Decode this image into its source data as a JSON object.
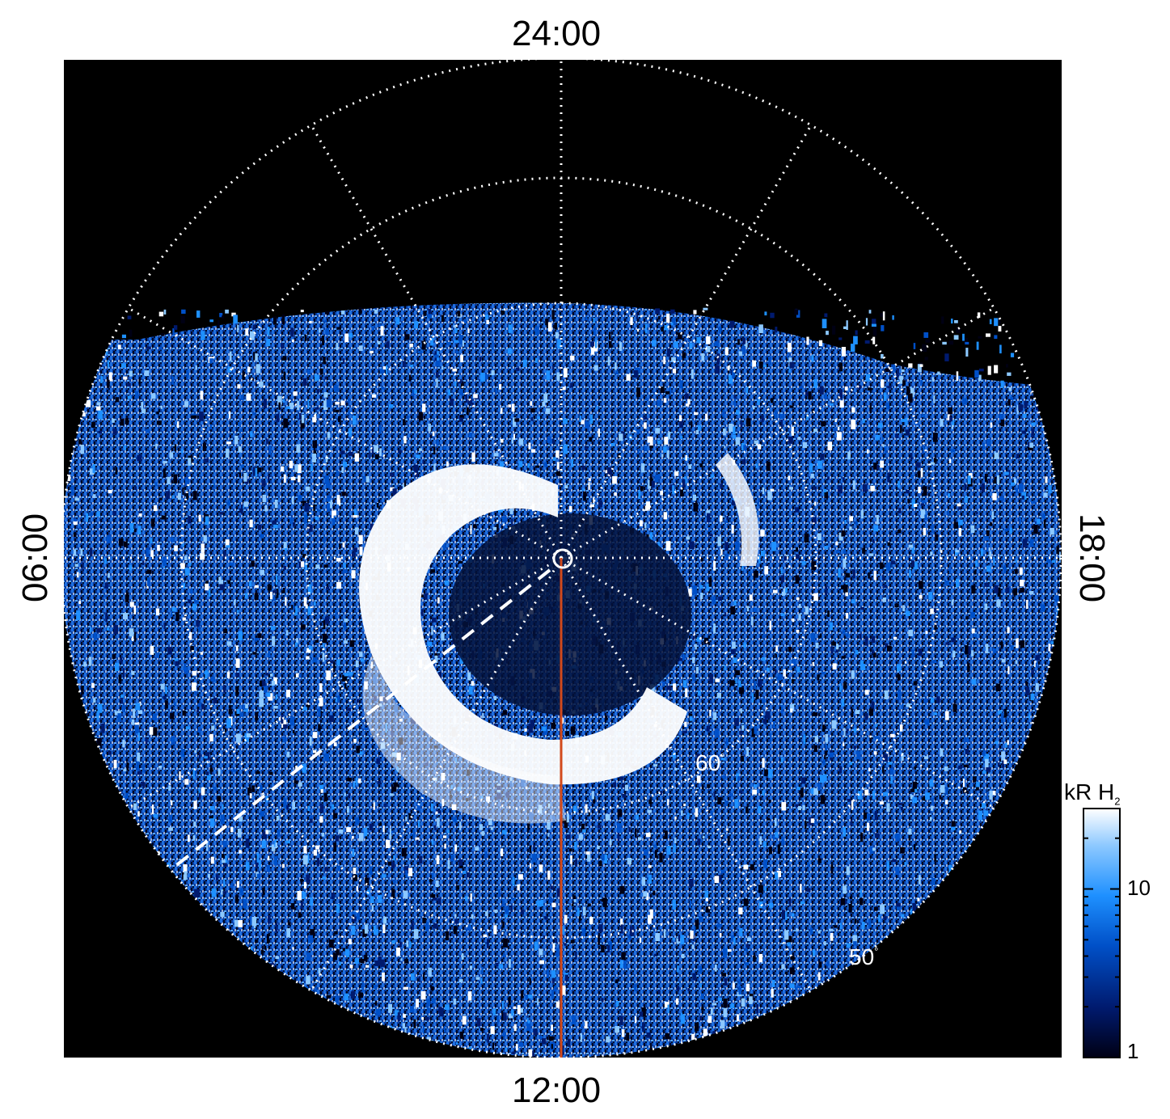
{
  "image": {
    "type": "polar auroral projection",
    "background": "#000000",
    "grid_color": "#ffffff",
    "meridian_color": "#d24a1c"
  },
  "local_time_labels": {
    "top": "24:00",
    "bottom": "12:00",
    "left": "06:00",
    "right": "18:00"
  },
  "latitude_labels": {
    "inner": "60",
    "outer": "50",
    "degree_symbol": "°"
  },
  "colorbar": {
    "title": "kR H",
    "title_subscript": "2",
    "ticks": [
      "10",
      "1"
    ],
    "colors": [
      "#000014",
      "#001a6e",
      "#0050c8",
      "#1e90ff",
      "#8cc8ff",
      "#ffffff"
    ],
    "scale": "log"
  },
  "features": {
    "main_oval": "bright emission ring around pole",
    "pole_marker": "circle at pole"
  }
}
